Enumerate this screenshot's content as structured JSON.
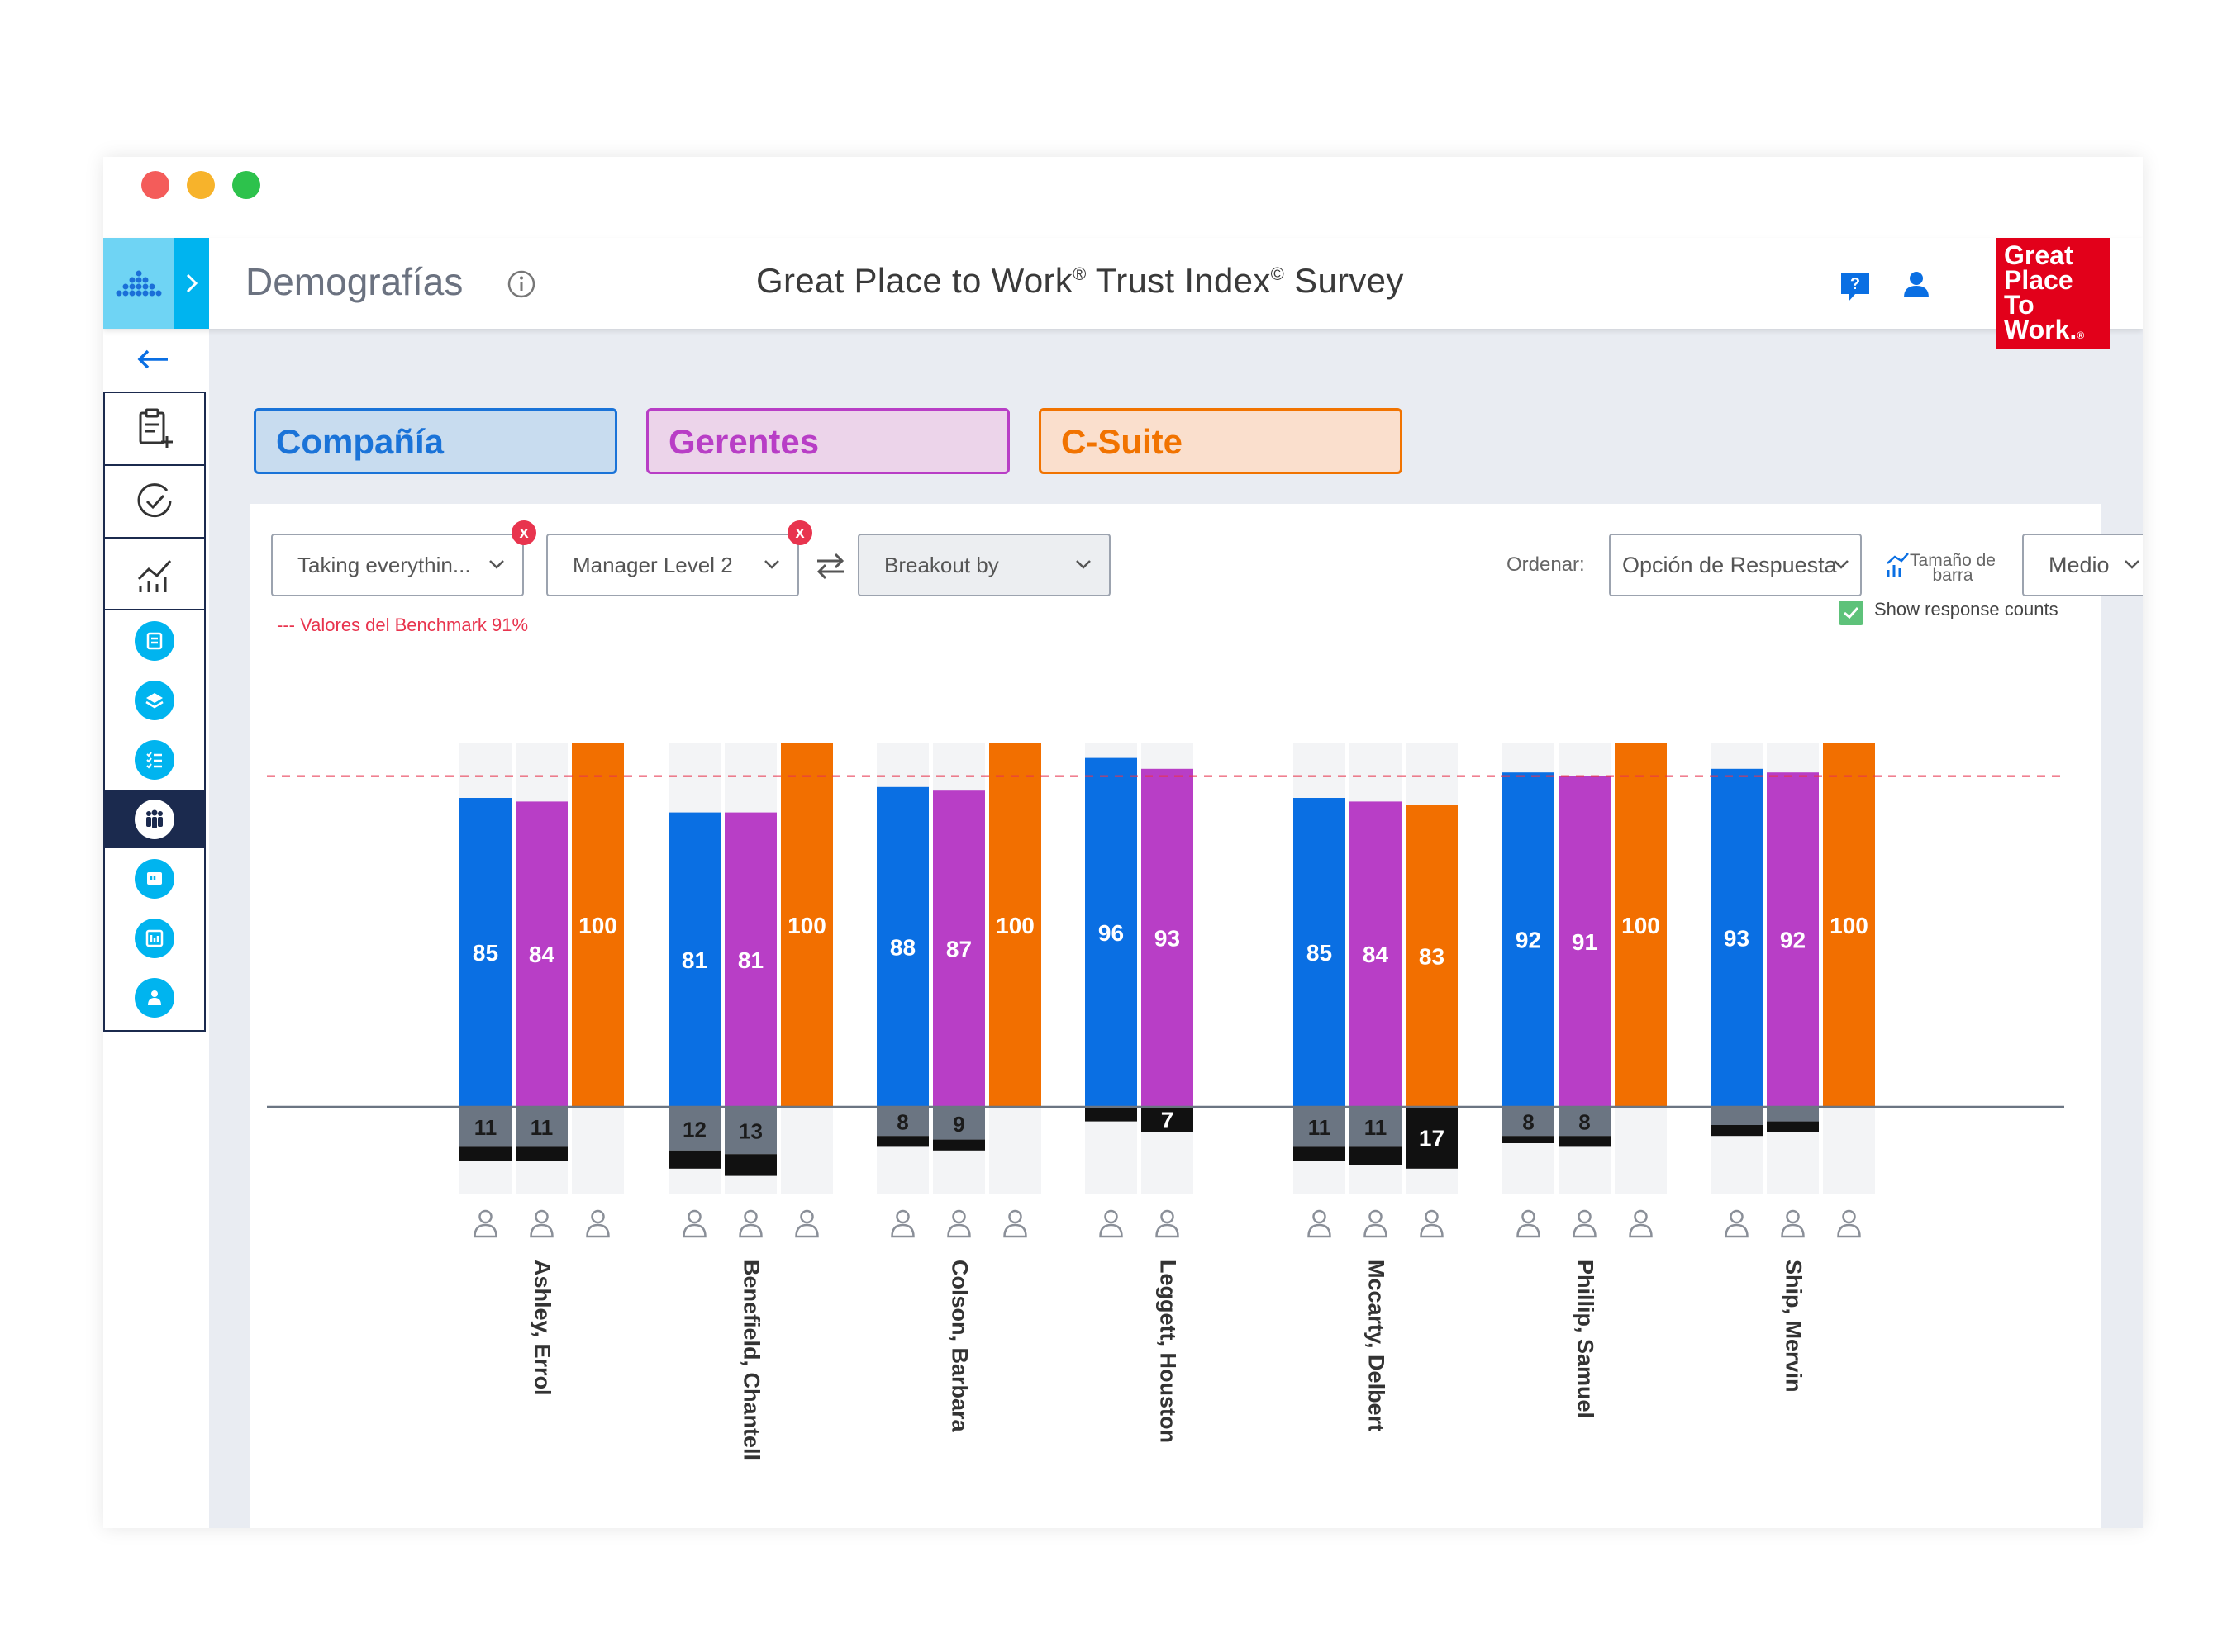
{
  "header": {
    "page_title": "Demografías",
    "survey_title": "Great Place to Work",
    "survey_title_mid": " Trust Index",
    "survey_title_end": " Survey",
    "reg_mark": "®",
    "copy_mark": "©"
  },
  "brand": {
    "logo_lines": [
      "Great",
      "Place",
      "To",
      "Work."
    ],
    "logo_reg": "®",
    "color": "#e2001a"
  },
  "tabs": [
    {
      "label": "Compañía",
      "color": "#1a73d8"
    },
    {
      "label": "Gerentes",
      "color": "#b83ec6"
    },
    {
      "label": "C-Suite",
      "color": "#f17300"
    }
  ],
  "filters": {
    "filter1": "Taking everythin...",
    "filter2": "Manager Level 2",
    "breakout": "Breakout by",
    "remove_glyph": "x",
    "sort_label": "Ordenar:",
    "sort_value": "Opción de Respuesta",
    "size_label_1": "Tamaño de",
    "size_label_2": "barra",
    "size_value": "Medio",
    "show_counts": "Show response counts"
  },
  "benchmark_note": "--- Valores del Benchmark 91%",
  "colors": {
    "company": "#0a6fe3",
    "managers": "#b83ec6",
    "csuite": "#f26f00",
    "neutral": "#6b7582",
    "negative": "#111111",
    "benchmark": "#e8344e"
  },
  "chart_data": {
    "type": "bar",
    "benchmark": 91,
    "ylim_positive": [
      0,
      100
    ],
    "categories": [
      "Ashley, Errol",
      "Benefield, Chantell",
      "Colson, Barbara",
      "Leggett, Houston",
      "Mccarty, Delbert",
      "Phillip, Samuel",
      "Ship, Mervin"
    ],
    "series": [
      {
        "name": "Compañía",
        "positive": [
          85,
          81,
          88,
          96,
          85,
          92,
          93
        ],
        "neutral": [
          11,
          12,
          8,
          0,
          11,
          8,
          5
        ],
        "negative": [
          4,
          5,
          3,
          4,
          4,
          2,
          3
        ]
      },
      {
        "name": "Gerentes",
        "positive": [
          84,
          81,
          87,
          93,
          84,
          91,
          92
        ],
        "neutral": [
          11,
          13,
          9,
          0,
          11,
          8,
          4
        ],
        "negative": [
          4,
          6,
          3,
          7,
          5,
          3,
          3
        ]
      },
      {
        "name": "C-Suite",
        "positive": [
          100,
          100,
          100,
          null,
          83,
          100,
          100
        ],
        "neutral": [
          0,
          0,
          0,
          null,
          0,
          0,
          0
        ],
        "negative": [
          0,
          0,
          0,
          null,
          17,
          0,
          0
        ]
      }
    ]
  }
}
